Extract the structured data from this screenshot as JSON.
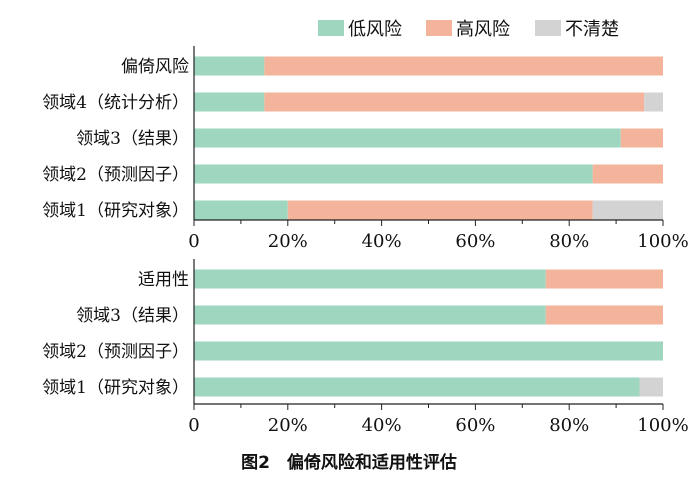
{
  "colors": {
    "low": "#9ed6c0",
    "high": "#f4b39b",
    "unclear": "#d3d3d3"
  },
  "legend": [
    {
      "key": "low",
      "label": "低风险"
    },
    {
      "key": "high",
      "label": "高风险"
    },
    {
      "key": "unclear",
      "label": "不清楚"
    }
  ],
  "caption": "图2　偏倚风险和适用性评估",
  "chart_data": [
    {
      "type": "bar",
      "orientation": "horizontal",
      "stacked": true,
      "categories": [
        "偏倚风险",
        "领域4（统计分析）",
        "领域3（结果）",
        "领域2（预测因子）",
        "领域1（研究对象）"
      ],
      "series": [
        {
          "name": "低风险",
          "values": [
            15,
            15,
            91,
            85,
            20
          ]
        },
        {
          "name": "高风险",
          "values": [
            85,
            81,
            9,
            15,
            65
          ]
        },
        {
          "name": "不清楚",
          "values": [
            0,
            4,
            0,
            0,
            15
          ]
        }
      ],
      "xlim": [
        0,
        100
      ],
      "xticks": [
        "0",
        "20%",
        "40%",
        "60%",
        "80%",
        "100%"
      ],
      "grid": false,
      "legend_position": "top-right"
    },
    {
      "type": "bar",
      "orientation": "horizontal",
      "stacked": true,
      "categories": [
        "适用性",
        "领域3（结果）",
        "领域2（预测因子）",
        "领域1（研究对象）"
      ],
      "series": [
        {
          "name": "低风险",
          "values": [
            75,
            75,
            100,
            95
          ]
        },
        {
          "name": "高风险",
          "values": [
            25,
            25,
            0,
            0
          ]
        },
        {
          "name": "不清楚",
          "values": [
            0,
            0,
            0,
            5
          ]
        }
      ],
      "xlim": [
        0,
        100
      ],
      "xticks": [
        "0",
        "20%",
        "40%",
        "60%",
        "80%",
        "100%"
      ],
      "grid": false
    }
  ]
}
